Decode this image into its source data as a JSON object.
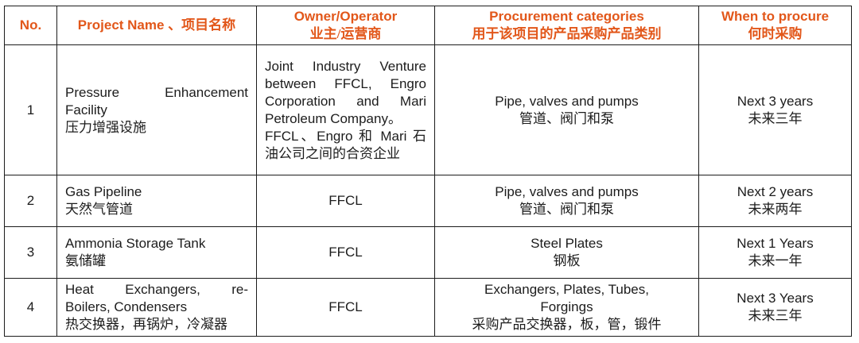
{
  "colors": {
    "header_text": "#e2571a",
    "body_text": "#1c1c1c",
    "border": "#1c1c1c",
    "background": "#ffffff"
  },
  "table": {
    "header": {
      "no": "No.",
      "project": "Project Name 、项目名称",
      "owner": [
        {
          "text": "Owner/Operator"
        },
        {
          "text": "业主/运营商",
          "lang": "zh"
        }
      ],
      "procurement": [
        {
          "text": "Procurement categories"
        },
        {
          "text": "用于该项目的产品采购产品类别",
          "lang": "zh"
        }
      ],
      "when": [
        {
          "text": "When to procure"
        },
        {
          "text": "何时采购",
          "lang": "zh"
        }
      ]
    },
    "rows": [
      {
        "no": "1",
        "project": [
          {
            "text": "Pressure Enhancement",
            "justify": true
          },
          {
            "text": "Facility"
          },
          {
            "text": "压力增强设施",
            "lang": "zh"
          }
        ],
        "owner": [
          {
            "text": "Joint Industry Venture",
            "justify": true
          },
          {
            "text": "between FFCL, Engro",
            "justify": true
          },
          {
            "text": "Corporation and Mari",
            "justify": true
          },
          {
            "text": "Petroleum Company。"
          },
          {
            "text": "FFCL、Engro 和 Mari 石",
            "justify": true
          },
          {
            "text": "油公司之间的合资企业",
            "lang": "zh"
          }
        ],
        "procurement": [
          {
            "text": "Pipe, valves and pumps"
          },
          {
            "text": "管道、阀门和泵",
            "lang": "zh"
          }
        ],
        "when": [
          {
            "text": "Next 3 years"
          },
          {
            "text": "未来三年",
            "lang": "zh"
          }
        ]
      },
      {
        "no": "2",
        "project": [
          {
            "text": "Gas Pipeline"
          },
          {
            "text": "天然气管道",
            "lang": "zh"
          }
        ],
        "owner": "FFCL",
        "procurement": [
          {
            "text": "Pipe, valves and pumps"
          },
          {
            "text": "管道、阀门和泵",
            "lang": "zh"
          }
        ],
        "when": [
          {
            "text": "Next 2 years"
          },
          {
            "text": "未来两年",
            "lang": "zh"
          }
        ]
      },
      {
        "no": "3",
        "project": [
          {
            "text": "Ammonia Storage Tank"
          },
          {
            "text": "氨储罐",
            "lang": "zh"
          }
        ],
        "owner": "FFCL",
        "procurement": [
          {
            "text": "Steel Plates"
          },
          {
            "text": "钢板",
            "lang": "zh"
          }
        ],
        "when": [
          {
            "text": "Next 1 Years"
          },
          {
            "text": "未来一年",
            "lang": "zh"
          }
        ]
      },
      {
        "no": "4",
        "project": [
          {
            "text": "Heat Exchangers, re-",
            "justify": true
          },
          {
            "text": "Boilers, Condensers"
          },
          {
            "text": "热交换器，再锅炉，冷凝器",
            "lang": "zh"
          }
        ],
        "owner": "FFCL",
        "procurement": [
          {
            "text": "Exchangers, Plates, Tubes,"
          },
          {
            "text": "Forgings"
          },
          {
            "text": "采购产品交换器，板，管，锻件",
            "lang": "zh"
          }
        ],
        "when": [
          {
            "text": "Next 3 Years"
          },
          {
            "text": "未来三年",
            "lang": "zh"
          }
        ]
      }
    ]
  }
}
